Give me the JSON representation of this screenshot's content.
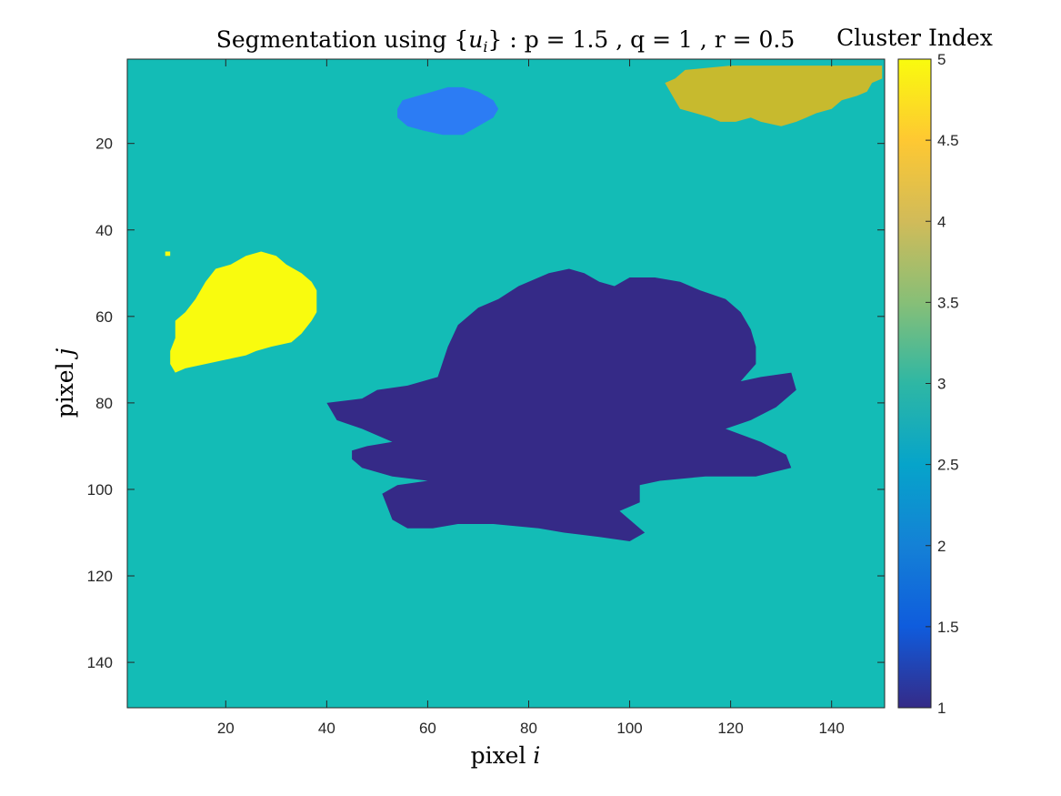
{
  "chart_data": {
    "type": "heatmap",
    "title": {
      "prefix": "Segmentation using ",
      "set_open": "{",
      "set_var": "u",
      "set_sub": "i",
      "set_close": "}",
      "suffix": " : p = 1.5 , q = 1 , r = 0.5"
    },
    "xlabel": {
      "text": "pixel ",
      "var": "i"
    },
    "ylabel": {
      "text": "pixel ",
      "var": "j"
    },
    "xlim": [
      0.5,
      150.5
    ],
    "ylim": [
      0.5,
      150.5
    ],
    "y_reversed": true,
    "xticks": [
      20,
      40,
      60,
      80,
      100,
      120,
      140
    ],
    "yticks": [
      20,
      40,
      60,
      80,
      100,
      120,
      140
    ],
    "background_cluster": 3,
    "colorbar": {
      "title": "Cluster Index",
      "range": [
        1,
        5
      ],
      "ticks": [
        1,
        1.5,
        2,
        2.5,
        3,
        3.5,
        4,
        4.5,
        5
      ],
      "colormap": "parula"
    },
    "regions": [
      {
        "cluster": 1,
        "polygon": [
          [
            47,
            79
          ],
          [
            50,
            77
          ],
          [
            56,
            76
          ],
          [
            62,
            74
          ],
          [
            64,
            67
          ],
          [
            66,
            62
          ],
          [
            70,
            58
          ],
          [
            74,
            56
          ],
          [
            78,
            53
          ],
          [
            84,
            50
          ],
          [
            88,
            49
          ],
          [
            91,
            50
          ],
          [
            94,
            52
          ],
          [
            97,
            53
          ],
          [
            100,
            51
          ],
          [
            105,
            51
          ],
          [
            110,
            52
          ],
          [
            114,
            54
          ],
          [
            119,
            56
          ],
          [
            122,
            59
          ],
          [
            124,
            63
          ],
          [
            125,
            67
          ],
          [
            125,
            71
          ],
          [
            122,
            75
          ],
          [
            126,
            74
          ],
          [
            132,
            73
          ],
          [
            133,
            77
          ],
          [
            129,
            81
          ],
          [
            124,
            84
          ],
          [
            119,
            86
          ],
          [
            126,
            89
          ],
          [
            131,
            92
          ],
          [
            132,
            95
          ],
          [
            125,
            97
          ],
          [
            115,
            97
          ],
          [
            106,
            98
          ],
          [
            102,
            99
          ],
          [
            102,
            103
          ],
          [
            98,
            105
          ],
          [
            100,
            107
          ],
          [
            103,
            110
          ],
          [
            100,
            112
          ],
          [
            94,
            111
          ],
          [
            87,
            110
          ],
          [
            82,
            109
          ],
          [
            73,
            108
          ],
          [
            66,
            108
          ],
          [
            61,
            109
          ],
          [
            56,
            109
          ],
          [
            53,
            107
          ],
          [
            52,
            104
          ],
          [
            51,
            101
          ],
          [
            54,
            99
          ],
          [
            60,
            98
          ],
          [
            53,
            97
          ],
          [
            47,
            95
          ],
          [
            45,
            93
          ],
          [
            45,
            91
          ],
          [
            48,
            90
          ],
          [
            53,
            89
          ],
          [
            47,
            86
          ],
          [
            42,
            84
          ],
          [
            40,
            80
          ]
        ]
      },
      {
        "cluster": 2,
        "polygon": [
          [
            54,
            12
          ],
          [
            55,
            10
          ],
          [
            58,
            9
          ],
          [
            61,
            8
          ],
          [
            64,
            7
          ],
          [
            67,
            7
          ],
          [
            70,
            8
          ],
          [
            73,
            10
          ],
          [
            74,
            12
          ],
          [
            73,
            14
          ],
          [
            70,
            16
          ],
          [
            67,
            18
          ],
          [
            63,
            18
          ],
          [
            59,
            17
          ],
          [
            56,
            16
          ],
          [
            54,
            14
          ]
        ]
      },
      {
        "cluster": 4,
        "polygon": [
          [
            107,
            6
          ],
          [
            109,
            5
          ],
          [
            111,
            3
          ],
          [
            120,
            2
          ],
          [
            130,
            2
          ],
          [
            141,
            2
          ],
          [
            150,
            2
          ],
          [
            150,
            5
          ],
          [
            148,
            6
          ],
          [
            147,
            8
          ],
          [
            145,
            9
          ],
          [
            142,
            10
          ],
          [
            140,
            12
          ],
          [
            137,
            13
          ],
          [
            135,
            14
          ],
          [
            133,
            15
          ],
          [
            130,
            16
          ],
          [
            126,
            15
          ],
          [
            124,
            14
          ],
          [
            121,
            15
          ],
          [
            118,
            15
          ],
          [
            116,
            14
          ],
          [
            113,
            13
          ],
          [
            110,
            12
          ],
          [
            109,
            10
          ],
          [
            108,
            8
          ]
        ]
      },
      {
        "cluster": 5,
        "polygon": [
          [
            10,
            61
          ],
          [
            12,
            59
          ],
          [
            14,
            56
          ],
          [
            16,
            52
          ],
          [
            18,
            49
          ],
          [
            21,
            48
          ],
          [
            24,
            46
          ],
          [
            27,
            45
          ],
          [
            30,
            46
          ],
          [
            32,
            48
          ],
          [
            35,
            50
          ],
          [
            37,
            52
          ],
          [
            38,
            54
          ],
          [
            38,
            57
          ],
          [
            38,
            59
          ],
          [
            37,
            61
          ],
          [
            35,
            64
          ],
          [
            33,
            66
          ],
          [
            29,
            67
          ],
          [
            26,
            68
          ],
          [
            24,
            69
          ],
          [
            20,
            70
          ],
          [
            16,
            71
          ],
          [
            12,
            72
          ],
          [
            10,
            73
          ],
          [
            9,
            71
          ],
          [
            9,
            68
          ],
          [
            10,
            65
          ]
        ]
      },
      {
        "cluster": 5,
        "polygon": [
          [
            8,
            45
          ],
          [
            9,
            45
          ],
          [
            9,
            46
          ],
          [
            8,
            46
          ]
        ]
      }
    ],
    "colors": {
      "c1": "#352a87",
      "c2": "#2c7cf4",
      "c3": "#13bcb6",
      "c4": "#c7ba2e",
      "c5": "#f9fb0e"
    }
  }
}
